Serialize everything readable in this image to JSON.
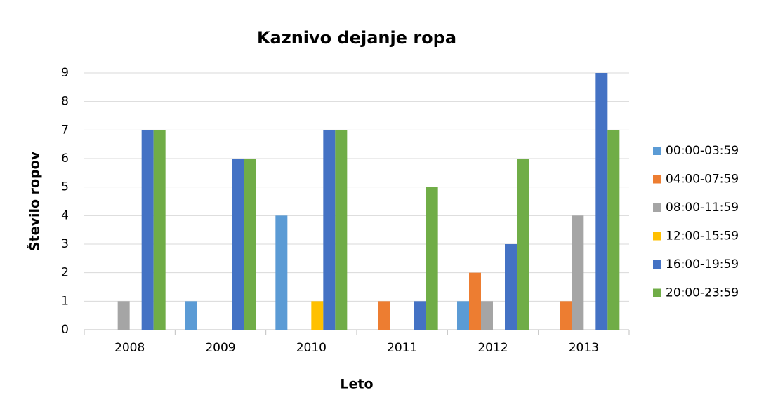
{
  "chart_data": {
    "type": "bar",
    "title": "Kaznivo dejanje ropa",
    "xlabel": "Leto",
    "ylabel": "Število ropov",
    "categories": [
      "2008",
      "2009",
      "2010",
      "2011",
      "2012",
      "2013"
    ],
    "series": [
      {
        "name": "00:00-03:59",
        "color": "#5b9bd5",
        "values": [
          0,
          1,
          4,
          0,
          1,
          0
        ]
      },
      {
        "name": "04:00-07:59",
        "color": "#ed7d31",
        "values": [
          0,
          0,
          0,
          1,
          2,
          1
        ]
      },
      {
        "name": "08:00-11:59",
        "color": "#a5a5a5",
        "values": [
          1,
          0,
          0,
          0,
          1,
          4
        ]
      },
      {
        "name": "12:00-15:59",
        "color": "#ffc000",
        "values": [
          0,
          0,
          1,
          0,
          0,
          0
        ]
      },
      {
        "name": "16:00-19:59",
        "color": "#4472c4",
        "values": [
          7,
          6,
          7,
          1,
          3,
          9
        ]
      },
      {
        "name": "20:00-23:59",
        "color": "#70ad47",
        "values": [
          7,
          6,
          7,
          5,
          6,
          7
        ]
      }
    ],
    "ylim": [
      0,
      9
    ],
    "yticks": [
      0,
      1,
      2,
      3,
      4,
      5,
      6,
      7,
      8,
      9
    ],
    "grid": true,
    "legend": "right"
  }
}
